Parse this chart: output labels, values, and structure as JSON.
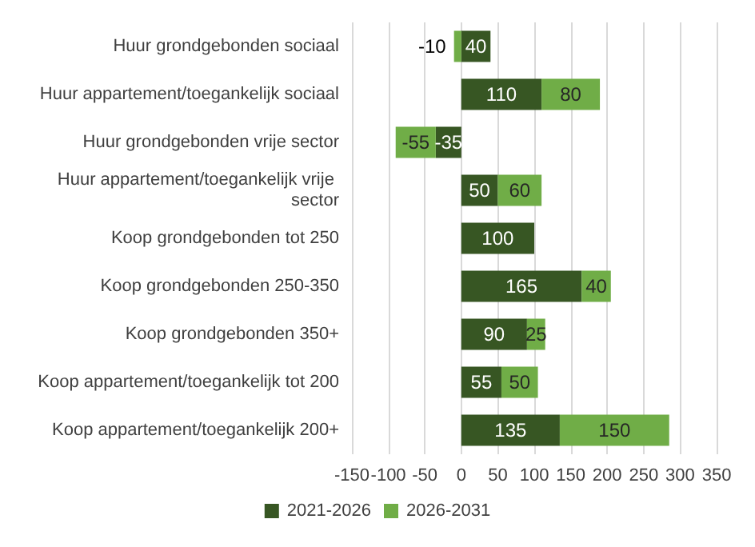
{
  "chart_data": {
    "type": "bar",
    "orientation": "horizontal",
    "stacked": true,
    "categories": [
      "Huur grondgebonden sociaal",
      "Huur appartement/toegankelijk sociaal",
      "Huur grondgebonden vrije sector",
      "Huur appartement/toegankelijk vrije sector",
      "Koop grondgebonden tot 250",
      "Koop grondgebonden 250-350",
      "Koop grondgebonden 350+",
      "Koop appartement/toegankelijk tot 200",
      "Koop appartement/toegankelijk 200+"
    ],
    "series": [
      {
        "name": "2021-2026",
        "color": "#375623",
        "values": [
          40,
          110,
          -35,
          50,
          100,
          165,
          90,
          55,
          135
        ]
      },
      {
        "name": "2026-2031",
        "color": "#70ad47",
        "values": [
          -10,
          80,
          -55,
          60,
          null,
          40,
          25,
          50,
          150
        ]
      }
    ],
    "xlim": [
      -150,
      350
    ],
    "xticks": [
      -150,
      -100,
      -50,
      0,
      50,
      100,
      150,
      200,
      250,
      300,
      350
    ],
    "grid": "x",
    "legend": "bottom",
    "data_labels": true
  }
}
